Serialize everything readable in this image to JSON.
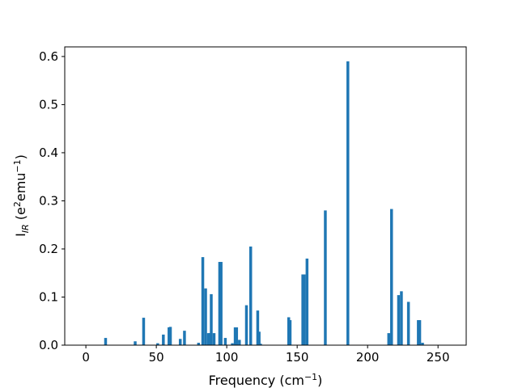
{
  "chart_data": {
    "type": "bar",
    "xlabel": "Frequency (cm⁻¹)",
    "ylabel": "I_IR (e²emu⁻¹)",
    "ylabel_parts": {
      "main": "I",
      "sub": "IR",
      "open": " (e",
      "sup1": "2",
      "mid": "emu",
      "sup2": "−1",
      "close": ")"
    },
    "xlabel_parts": {
      "main": "Frequency (cm",
      "sup": "−1",
      "close": ")"
    },
    "xlim": [
      -15,
      270
    ],
    "ylim": [
      0,
      0.62
    ],
    "xticks": [
      0,
      50,
      100,
      150,
      200,
      250
    ],
    "yticks": [
      0.0,
      0.1,
      0.2,
      0.3,
      0.4,
      0.5,
      0.6
    ],
    "ytick_labels": [
      "0.0",
      "0.1",
      "0.2",
      "0.3",
      "0.4",
      "0.5",
      "0.6"
    ],
    "bar_color": "#1f77b4",
    "bar_width": 2,
    "x": [
      14,
      35,
      41,
      51,
      55,
      59,
      60,
      67,
      70,
      80,
      83,
      85,
      87,
      88,
      89,
      91,
      95,
      96,
      99,
      104,
      106,
      107,
      109,
      114,
      117,
      122,
      123,
      124,
      144,
      145,
      154,
      155,
      157,
      170,
      186,
      215,
      217,
      222,
      224,
      229,
      236,
      237,
      239
    ],
    "values": [
      0.015,
      0.008,
      0.057,
      0.004,
      0.022,
      0.037,
      0.038,
      0.013,
      0.03,
      0.005,
      0.183,
      0.118,
      0.025,
      0.025,
      0.106,
      0.025,
      0.173,
      0.173,
      0.015,
      0.004,
      0.037,
      0.037,
      0.011,
      0.083,
      0.205,
      0.072,
      0.028,
      0.003,
      0.058,
      0.052,
      0.147,
      0.147,
      0.18,
      0.28,
      0.59,
      0.025,
      0.283,
      0.104,
      0.112,
      0.09,
      0.052,
      0.052,
      0.005
    ]
  }
}
